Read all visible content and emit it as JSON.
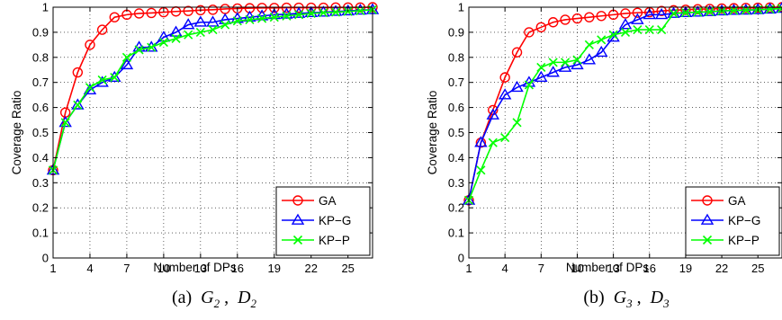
{
  "chart_data": [
    {
      "type": "line",
      "caption": {
        "prefix": "(a)",
        "sym1": "G",
        "sub1": "2",
        "sep": ",",
        "sym2": "D",
        "sub2": "2"
      },
      "xlabel": "Number of DPs",
      "ylabel": "Coverage Ratio",
      "xlim": [
        1,
        27
      ],
      "ylim": [
        0,
        1
      ],
      "xticks": [
        1,
        4,
        7,
        10,
        13,
        16,
        19,
        22,
        25
      ],
      "yticks": [
        0,
        0.1,
        0.2,
        0.3,
        0.4,
        0.5,
        0.6,
        0.7,
        0.8,
        0.9,
        1
      ],
      "ytick_labels": [
        "0",
        "0.1",
        "0.2",
        "0.3",
        "0.4",
        "0.5",
        "0.6",
        "0.7",
        "0.8",
        "0.9",
        "1"
      ],
      "grid": true,
      "legend_position": "bottom-right",
      "x": [
        1,
        2,
        3,
        4,
        5,
        6,
        7,
        8,
        9,
        10,
        11,
        12,
        13,
        14,
        15,
        16,
        17,
        18,
        19,
        20,
        21,
        22,
        23,
        24,
        25,
        26,
        27
      ],
      "series": [
        {
          "name": "GA",
          "color": "#ff0000",
          "marker": "circle",
          "values": [
            0.35,
            0.58,
            0.74,
            0.85,
            0.91,
            0.96,
            0.97,
            0.975,
            0.977,
            0.98,
            0.983,
            0.985,
            0.988,
            0.99,
            0.993,
            0.995,
            0.996,
            0.997,
            0.997,
            0.998,
            0.998,
            0.998,
            0.998,
            0.999,
            0.999,
            0.999,
            1.0
          ]
        },
        {
          "name": "KP−G",
          "color": "#0000ff",
          "marker": "triangle",
          "values": [
            0.35,
            0.54,
            0.61,
            0.67,
            0.7,
            0.72,
            0.77,
            0.84,
            0.84,
            0.88,
            0.9,
            0.93,
            0.94,
            0.94,
            0.95,
            0.955,
            0.96,
            0.965,
            0.97,
            0.972,
            0.975,
            0.978,
            0.98,
            0.983,
            0.985,
            0.988,
            0.99
          ]
        },
        {
          "name": "KP−P",
          "color": "#00ff00",
          "marker": "x",
          "values": [
            0.35,
            0.54,
            0.61,
            0.68,
            0.71,
            0.72,
            0.8,
            0.83,
            0.84,
            0.86,
            0.875,
            0.89,
            0.9,
            0.91,
            0.93,
            0.945,
            0.95,
            0.955,
            0.96,
            0.965,
            0.97,
            0.975,
            0.978,
            0.98,
            0.983,
            0.986,
            0.99
          ]
        }
      ]
    },
    {
      "type": "line",
      "caption": {
        "prefix": "(b)",
        "sym1": "G",
        "sub1": "3",
        "sep": ",",
        "sym2": "D",
        "sub2": "3"
      },
      "xlabel": "Number of DPs",
      "ylabel": "Coverage Ratio",
      "xlim": [
        1,
        27
      ],
      "ylim": [
        0,
        1
      ],
      "xticks": [
        1,
        4,
        7,
        10,
        13,
        16,
        19,
        22,
        25
      ],
      "yticks": [
        0,
        0.1,
        0.2,
        0.3,
        0.4,
        0.5,
        0.6,
        0.7,
        0.8,
        0.9,
        1
      ],
      "ytick_labels": [
        "0",
        "0.1",
        "0.2",
        "0.3",
        "0.4",
        "0.5",
        "0.6",
        "0.7",
        "0.8",
        "0.9",
        "1"
      ],
      "grid": true,
      "legend_position": "bottom-right",
      "x": [
        1,
        2,
        3,
        4,
        5,
        6,
        7,
        8,
        9,
        10,
        11,
        12,
        13,
        14,
        15,
        16,
        17,
        18,
        19,
        20,
        21,
        22,
        23,
        24,
        25,
        26,
        27
      ],
      "series": [
        {
          "name": "GA",
          "color": "#ff0000",
          "marker": "circle",
          "values": [
            0.23,
            0.46,
            0.59,
            0.72,
            0.82,
            0.9,
            0.92,
            0.94,
            0.95,
            0.955,
            0.96,
            0.965,
            0.97,
            0.975,
            0.978,
            0.98,
            0.985,
            0.988,
            0.99,
            0.992,
            0.993,
            0.995,
            0.996,
            0.997,
            0.998,
            0.999,
            1.0
          ]
        },
        {
          "name": "KP−G",
          "color": "#0000ff",
          "marker": "triangle",
          "values": [
            0.23,
            0.46,
            0.57,
            0.65,
            0.68,
            0.7,
            0.72,
            0.74,
            0.76,
            0.77,
            0.79,
            0.82,
            0.88,
            0.93,
            0.95,
            0.97,
            0.97,
            0.975,
            0.978,
            0.98,
            0.982,
            0.985,
            0.987,
            0.988,
            0.99,
            0.992,
            0.995
          ]
        },
        {
          "name": "KP−P",
          "color": "#00ff00",
          "marker": "x",
          "values": [
            0.23,
            0.35,
            0.46,
            0.48,
            0.54,
            0.69,
            0.76,
            0.78,
            0.78,
            0.79,
            0.85,
            0.87,
            0.89,
            0.9,
            0.91,
            0.91,
            0.91,
            0.975,
            0.978,
            0.98,
            0.982,
            0.985,
            0.987,
            0.988,
            0.99,
            0.992,
            0.995
          ]
        }
      ]
    }
  ]
}
